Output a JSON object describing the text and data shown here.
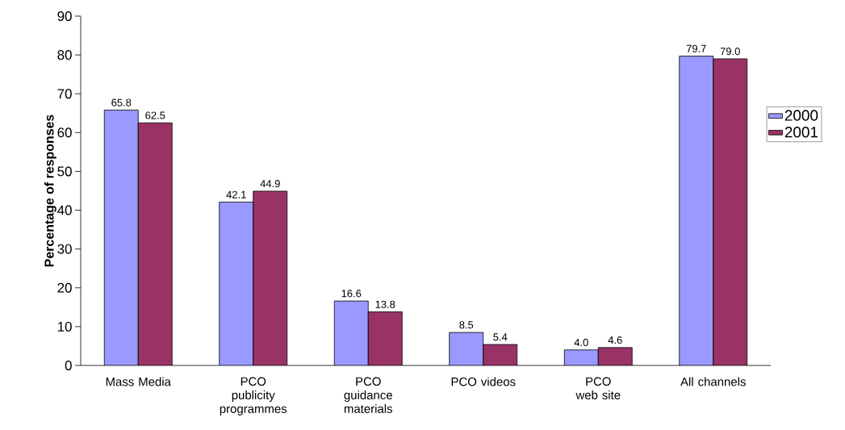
{
  "chart_data": {
    "type": "bar",
    "ylabel": "Percentage of responses",
    "categories": [
      "Mass Media",
      "PCO publicity programmes",
      "PCO guidance materials",
      "PCO videos",
      "PCO web site",
      "All channels"
    ],
    "series": [
      {
        "name": "2000",
        "color": "#9999ff",
        "values": [
          65.8,
          42.1,
          16.6,
          8.5,
          4.0,
          79.7
        ],
        "value_labels": [
          "65.8",
          "42.1",
          "16.6",
          "8.5",
          "4.0",
          "79.7"
        ]
      },
      {
        "name": "2001",
        "color": "#993366",
        "values": [
          62.5,
          44.9,
          13.8,
          5.4,
          4.6,
          79.0
        ],
        "value_labels": [
          "62.5",
          "44.9",
          "13.8",
          "5.4",
          "4.6",
          "79.0"
        ]
      }
    ],
    "ylim": [
      0,
      90
    ],
    "yticks": [
      0,
      10,
      20,
      30,
      40,
      50,
      60,
      70,
      80,
      90
    ],
    "legend": "right",
    "grid": false
  }
}
